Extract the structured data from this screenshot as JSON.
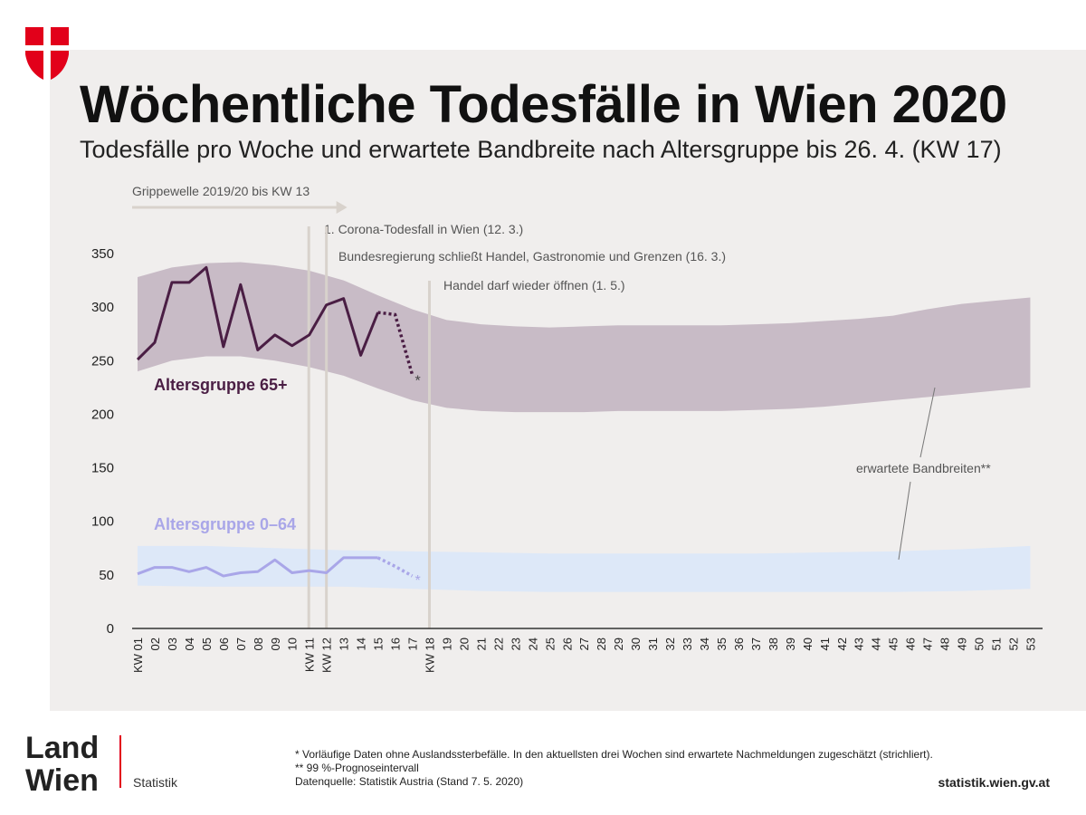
{
  "header": {
    "title": "Wöchentliche Todesfälle in Wien 2020",
    "subtitle": "Todesfälle pro Woche und erwartete Bandbreite nach Altersgruppe bis 26. 4. (KW 17)"
  },
  "colors": {
    "brand_red": "#e2001a",
    "band_65": "#c8bbc6",
    "line_65": "#4a1e44",
    "band_064": "#dde8f8",
    "line_064": "#a9a6e8",
    "marker": "#d8d2cc",
    "axis": "#333333"
  },
  "chart_data": {
    "type": "line",
    "ylim": [
      0,
      350
    ],
    "yticks": [
      0,
      50,
      100,
      150,
      200,
      250,
      300,
      350
    ],
    "x": [
      1,
      2,
      3,
      4,
      5,
      6,
      7,
      8,
      9,
      10,
      11,
      12,
      13,
      14,
      15,
      16,
      17,
      18,
      19,
      20,
      21,
      22,
      23,
      24,
      25,
      26,
      27,
      28,
      29,
      30,
      31,
      32,
      33,
      34,
      35,
      36,
      37,
      38,
      39,
      40,
      41,
      42,
      43,
      44,
      45,
      46,
      47,
      48,
      49,
      50,
      51,
      52,
      53
    ],
    "xtick_labels": [
      "KW 01",
      "02",
      "03",
      "04",
      "05",
      "06",
      "07",
      "08",
      "09",
      "10",
      "KW 11",
      "KW 12",
      "13",
      "14",
      "15",
      "16",
      "17",
      "KW 18",
      "19",
      "20",
      "21",
      "22",
      "23",
      "24",
      "25",
      "26",
      "27",
      "28",
      "29",
      "30",
      "31",
      "32",
      "33",
      "34",
      "35",
      "36",
      "37",
      "38",
      "39",
      "40",
      "41",
      "42",
      "43",
      "44",
      "45",
      "46",
      "47",
      "48",
      "49",
      "50",
      "51",
      "52",
      "53"
    ],
    "series": [
      {
        "name": "Altersgruppe 65+",
        "x": [
          1,
          2,
          3,
          4,
          5,
          6,
          7,
          8,
          9,
          10,
          11,
          12,
          13,
          14,
          15,
          16,
          17
        ],
        "values": [
          251,
          267,
          323,
          323,
          337,
          263,
          321,
          260,
          274,
          264,
          274,
          302,
          308,
          255,
          295,
          293,
          237
        ],
        "provisional_from_week": 15
      },
      {
        "name": "Altersgruppe 0–64",
        "x": [
          1,
          2,
          3,
          4,
          5,
          6,
          7,
          8,
          9,
          10,
          11,
          12,
          13,
          14,
          15,
          16,
          17
        ],
        "values": [
          51,
          57,
          57,
          53,
          57,
          49,
          52,
          53,
          64,
          52,
          54,
          52,
          66,
          66,
          66,
          58,
          49
        ],
        "provisional_from_week": 15
      }
    ],
    "bands": [
      {
        "name": "Altersgruppe 65+",
        "x": [
          1,
          3,
          5,
          7,
          9,
          11,
          13,
          15,
          17,
          19,
          21,
          23,
          25,
          27,
          29,
          31,
          33,
          35,
          37,
          39,
          41,
          43,
          45,
          47,
          49,
          51,
          53
        ],
        "upper": [
          328,
          337,
          341,
          342,
          339,
          334,
          325,
          311,
          298,
          288,
          284,
          282,
          281,
          282,
          283,
          283,
          283,
          283,
          284,
          285,
          287,
          289,
          292,
          298,
          303,
          306,
          309
        ],
        "lower": [
          240,
          250,
          254,
          254,
          250,
          244,
          236,
          224,
          213,
          206,
          203,
          202,
          202,
          202,
          203,
          203,
          203,
          203,
          204,
          205,
          207,
          210,
          213,
          216,
          219,
          222,
          225
        ]
      },
      {
        "name": "Altersgruppe 0–64",
        "x": [
          1,
          5,
          9,
          13,
          17,
          21,
          25,
          29,
          33,
          37,
          41,
          45,
          49,
          53
        ],
        "upper": [
          77,
          77,
          75,
          73,
          72,
          71,
          70,
          70,
          70,
          70,
          71,
          72,
          74,
          77
        ],
        "lower": [
          40,
          39,
          39,
          39,
          37,
          35,
          34,
          34,
          34,
          34,
          34,
          34,
          35,
          37
        ]
      }
    ],
    "markers": [
      {
        "week": 11.0,
        "label": "1. Corona-Todesfall in Wien (12. 3.)"
      },
      {
        "week": 12.0,
        "label": "Bundesregierung schließt Handel, Gastronomie und Grenzen (16. 3.)"
      },
      {
        "week": 18.0,
        "label": "Handel darf wieder öffnen (1. 5.)"
      }
    ],
    "series_labels": {
      "label_65": "Altersgruppe 65+",
      "label_064": "Altersgruppe 0–64"
    },
    "grippewelle": {
      "label": "Grippewelle 2019/20 bis KW 13",
      "from_week": 1,
      "to_week": 13
    },
    "band_annotation": "erwartete Bandbreiten**",
    "asterisk": "*"
  },
  "footer": {
    "logo_line1": "Land",
    "logo_line2": "Wien",
    "statistik": "Statistik",
    "note1": "* Vorläufige Daten ohne Auslandssterbefälle. In den aktuellsten drei Wochen sind erwartete Nachmeldungen zugeschätzt (strichliert).",
    "note2": "** 99 %-Prognoseintervall",
    "note3": "Datenquelle: Statistik Austria (Stand 7. 5. 2020)",
    "url": "statistik.wien.gv.at"
  }
}
